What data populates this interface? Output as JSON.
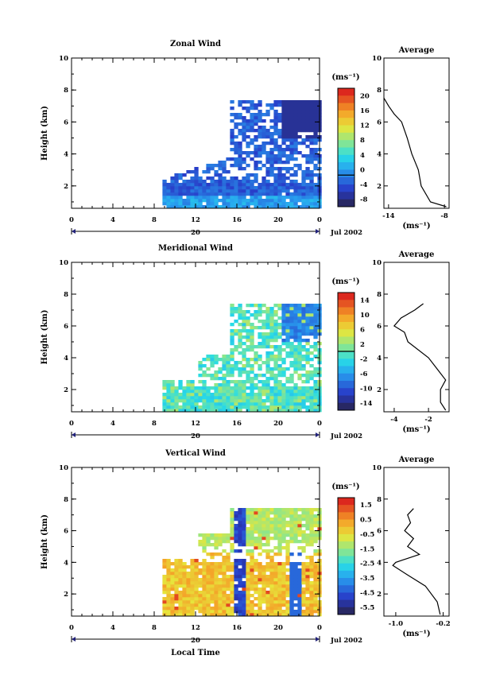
{
  "chart_data": [
    {
      "type": "heatmap",
      "title": "Zonal Wind",
      "ylabel": "Height (km)",
      "x_ticks": [
        "0",
        "4",
        "8",
        "12",
        "16",
        "20",
        "0"
      ],
      "y_ticks": [
        "2",
        "4",
        "6",
        "8",
        "10"
      ],
      "ylim": [
        0.6,
        10
      ],
      "date_day": "20",
      "date_label": "Jul 2002",
      "colorbar": {
        "unit": "(ms⁻¹)",
        "ticks": [
          "20",
          "16",
          "12",
          "8",
          "4",
          "0",
          "-4",
          "-8"
        ],
        "range": [
          -8,
          22
        ],
        "zero_line": 0
      },
      "data_extent": {
        "x_start_hour": 8.8,
        "x_end_hour": 24,
        "y_top_km": 7.5
      },
      "avg_profile": {
        "title": "Average",
        "x_ticks": [
          "-14",
          "-8"
        ],
        "xlim": [
          -14.5,
          -7.5
        ],
        "y_ticks": [
          "2",
          "4",
          "6",
          "8",
          "10"
        ],
        "xlabel": "(ms⁻¹)",
        "height": [
          0.7,
          1.0,
          2.0,
          3.0,
          4.0,
          5.0,
          6.0,
          6.5,
          7.0,
          7.5
        ],
        "value": [
          -7.8,
          -9.5,
          -10.5,
          -10.8,
          -11.5,
          -12.0,
          -12.6,
          -13.4,
          -14.0,
          -14.5
        ]
      }
    },
    {
      "type": "heatmap",
      "title": "Meridional Wind",
      "ylabel": "Height (km)",
      "x_ticks": [
        "0",
        "4",
        "8",
        "12",
        "16",
        "20",
        "0"
      ],
      "y_ticks": [
        "2",
        "4",
        "6",
        "8",
        "10"
      ],
      "ylim": [
        0.6,
        10
      ],
      "date_day": "20",
      "date_label": "Jul 2002",
      "colorbar": {
        "unit": "(ms⁻¹)",
        "ticks": [
          "14",
          "10",
          "6",
          "2",
          "-2",
          "-6",
          "-10",
          "-14"
        ],
        "range": [
          -16,
          16
        ],
        "zero_line": 0
      },
      "data_extent": {
        "x_start_hour": 8.8,
        "x_end_hour": 24,
        "y_top_km": 7.4
      },
      "avg_profile": {
        "title": "Average",
        "x_ticks": [
          "-4",
          "-2"
        ],
        "xlim": [
          -4.6,
          -0.8
        ],
        "y_ticks": [
          "2",
          "4",
          "6",
          "8",
          "10"
        ],
        "xlabel": "(ms⁻¹)",
        "height": [
          0.7,
          1.2,
          2.0,
          2.6,
          3.3,
          4.0,
          5.0,
          5.6,
          6.0,
          6.5,
          7.0,
          7.4
        ],
        "value": [
          -1.0,
          -1.3,
          -1.3,
          -1.0,
          -1.5,
          -2.0,
          -3.2,
          -3.4,
          -4.0,
          -3.6,
          -2.8,
          -2.3
        ]
      }
    },
    {
      "type": "heatmap",
      "title": "Vertical Wind",
      "ylabel": "Height (km)",
      "xlabel": "Local Time",
      "x_ticks": [
        "0",
        "4",
        "8",
        "12",
        "16",
        "20",
        "0"
      ],
      "y_ticks": [
        "2",
        "4",
        "6",
        "8",
        "10"
      ],
      "ylim": [
        0.6,
        10
      ],
      "date_day": "20",
      "date_label": "Jul 2002",
      "colorbar": {
        "unit": "(ms⁻¹)",
        "ticks": [
          "1.5",
          "0.5",
          "-0.5",
          "-1.5",
          "-2.5",
          "-3.5",
          "-4.5",
          "-5.5"
        ],
        "range": [
          -6.2,
          2.2
        ]
      },
      "data_extent": {
        "x_start_hour": 8.8,
        "x_end_hour": 24,
        "y_top_km": 7.5
      },
      "avg_profile": {
        "title": "Average",
        "x_ticks": [
          "-1.0",
          "-0.2"
        ],
        "xlim": [
          -1.2,
          -0.1
        ],
        "y_ticks": [
          "2",
          "4",
          "6",
          "8",
          "10"
        ],
        "xlabel": "(ms⁻¹)",
        "height": [
          0.7,
          1.5,
          2.5,
          3.2,
          3.8,
          4.0,
          4.5,
          5.0,
          5.5,
          6.0,
          6.5,
          7.0,
          7.4
        ],
        "value": [
          -0.25,
          -0.3,
          -0.5,
          -0.8,
          -1.05,
          -1.0,
          -0.6,
          -0.8,
          -0.7,
          -0.85,
          -0.75,
          -0.8,
          -0.7
        ]
      }
    }
  ]
}
